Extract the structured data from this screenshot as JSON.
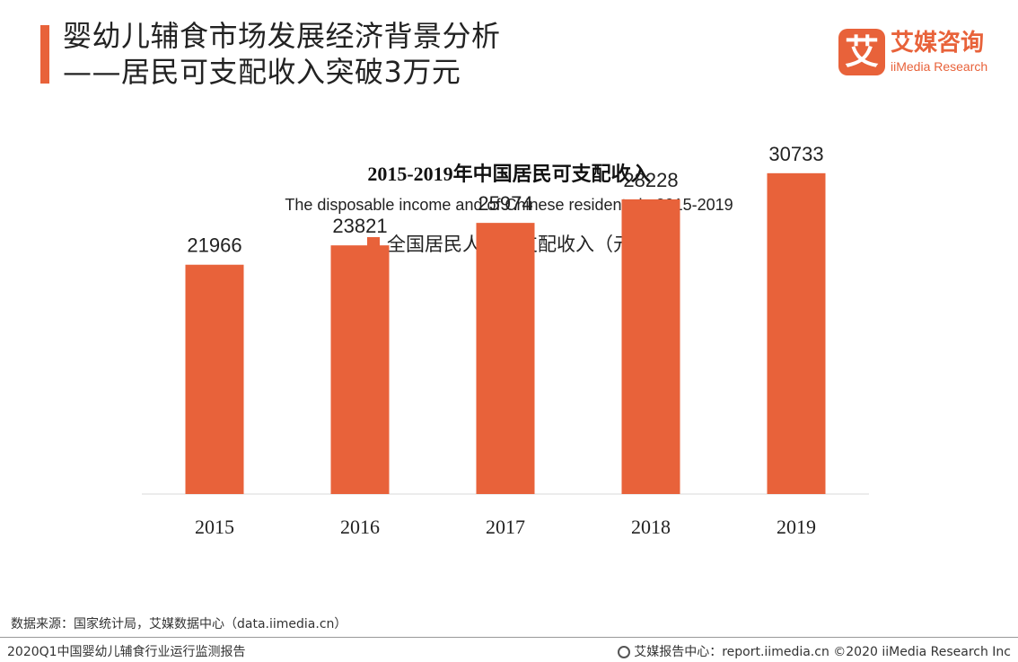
{
  "header": {
    "title_line1": "婴幼儿辅食市场发展经济背景分析",
    "title_line2": "——居民可支配收入突破3万元"
  },
  "logo": {
    "mark": "艾",
    "name_cn": "艾媒咨询",
    "name_en": "iiMedia Research"
  },
  "colors": {
    "accent": "#e8623a",
    "bar": "#e8623a",
    "baseline": "#d9d9d9"
  },
  "chart_data": {
    "type": "bar",
    "title": "2015-2019年中国居民可支配收入",
    "subtitle": "The disposable income and of Chinese residents in 2015-2019",
    "categories": [
      "2015",
      "2016",
      "2017",
      "2018",
      "2019"
    ],
    "series": [
      {
        "name": "全国居民人均可支配收入（元）",
        "values": [
          21966,
          23821,
          25974,
          28228,
          30733
        ]
      }
    ],
    "ylim": [
      0,
      37000
    ],
    "grid": false,
    "legend": "top-center",
    "data_labels": true
  },
  "footer": {
    "source": "数据来源：国家统计局，艾媒数据中心（data.iimedia.cn）",
    "report": "2020Q1中国婴幼儿辅食行业运行监测报告",
    "site": "艾媒报告中心：report.iimedia.cn  ©2020  iiMedia Research  Inc"
  }
}
